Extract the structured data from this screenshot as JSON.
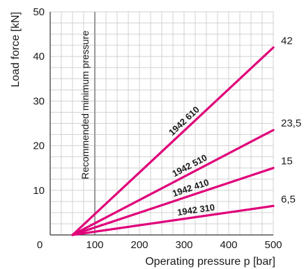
{
  "chart_data": {
    "type": "line",
    "xlabel": "Operating pressure p [bar]",
    "ylabel": "Load force [kN]",
    "xlim": [
      0,
      500
    ],
    "ylim": [
      0,
      50
    ],
    "x_ticks": [
      "0",
      "100",
      "200",
      "300",
      "400",
      "500"
    ],
    "y_ticks": [
      "10",
      "20",
      "30",
      "40",
      "50"
    ],
    "grid": true,
    "line_color": "#e0007a",
    "annotation": {
      "text": "Recommended minimum pressure",
      "x": 100,
      "color": "#999999"
    },
    "series": [
      {
        "name": "1942 310",
        "x": [
          50,
          500
        ],
        "y": [
          0,
          6.5
        ],
        "end_label": "6,5"
      },
      {
        "name": "1942 410",
        "x": [
          50,
          500
        ],
        "y": [
          0,
          15
        ],
        "end_label": "15"
      },
      {
        "name": "1942 510",
        "x": [
          50,
          500
        ],
        "y": [
          0,
          23.5
        ],
        "end_label": "23,5"
      },
      {
        "name": "1942 610",
        "x": [
          50,
          500
        ],
        "y": [
          0,
          42
        ],
        "end_label": "42"
      }
    ]
  }
}
